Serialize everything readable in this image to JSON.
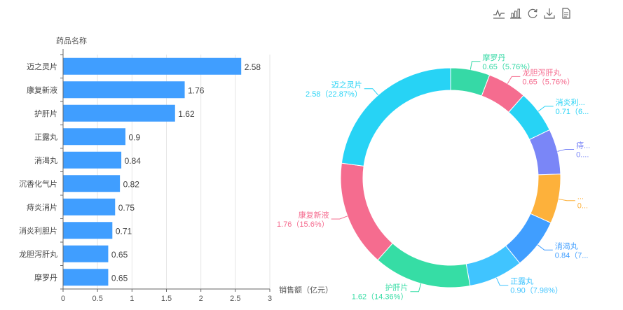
{
  "toolbar": {
    "icons": [
      "line-chart-icon",
      "bar-chart-icon",
      "restore-icon",
      "download-icon",
      "data-view-icon"
    ]
  },
  "chart_data": [
    {
      "type": "bar",
      "orientation": "horizontal",
      "ylabel": "药品名称",
      "xlabel": "销售额（亿元）",
      "categories": [
        "迈之灵片",
        "康复新液",
        "护肝片",
        "正露丸",
        "消渴丸",
        "沉香化气片",
        "痔炎消片",
        "消炎利胆片",
        "龙胆泻肝丸",
        "摩罗丹"
      ],
      "values": [
        2.58,
        1.76,
        1.62,
        0.9,
        0.84,
        0.82,
        0.75,
        0.71,
        0.65,
        0.65
      ],
      "value_labels": [
        "2.58",
        "1.76",
        "1.62",
        "0.9",
        "0.84",
        "0.82",
        "0.75",
        "0.71",
        "0.65",
        "0.65"
      ],
      "xlim": [
        0,
        3
      ],
      "xticks": [
        "0",
        "0.5",
        "1",
        "1.5",
        "2",
        "2.5",
        "3"
      ],
      "grid": true,
      "color": "#409EFF"
    },
    {
      "type": "pie",
      "style": "donut",
      "slices": [
        {
          "name": "摩罗丹",
          "value": 0.65,
          "label": "摩罗丹",
          "sublabel": "0.65（5.76%）",
          "color": "#36D9A6"
        },
        {
          "name": "龙胆泻肝丸",
          "value": 0.65,
          "label": "龙胆泻肝丸",
          "sublabel": "0.65（5.76%）",
          "color": "#F56C8F"
        },
        {
          "name": "消炎利胆片",
          "value": 0.71,
          "label": "消炎利...",
          "sublabel": "0.71（6...",
          "color": "#27D3F5"
        },
        {
          "name": "痔炎消片",
          "value": 0.75,
          "label": "痔...",
          "sublabel": "0....",
          "color": "#7A86F7"
        },
        {
          "name": "沉香化气片",
          "value": 0.82,
          "label": "...",
          "sublabel": "0...",
          "color": "#FDB13B"
        },
        {
          "name": "消渴丸",
          "value": 0.84,
          "label": "消渴丸",
          "sublabel": "0.84（7...",
          "color": "#409EFF"
        },
        {
          "name": "正露丸",
          "value": 0.9,
          "label": "正露丸",
          "sublabel": "0.90（7.98%）",
          "color": "#40C4FF"
        },
        {
          "name": "护肝片",
          "value": 1.62,
          "label": "护肝片",
          "sublabel": "1.62（14.36%）",
          "color": "#36DDA5"
        },
        {
          "name": "康复新液",
          "value": 1.76,
          "label": "康复新液",
          "sublabel": "1.76（15.6%）",
          "color": "#F56C8F"
        },
        {
          "name": "迈之灵片",
          "value": 2.58,
          "label": "迈之灵片",
          "sublabel": "2.58（22.87%）",
          "color": "#27D3F5"
        }
      ]
    }
  ]
}
